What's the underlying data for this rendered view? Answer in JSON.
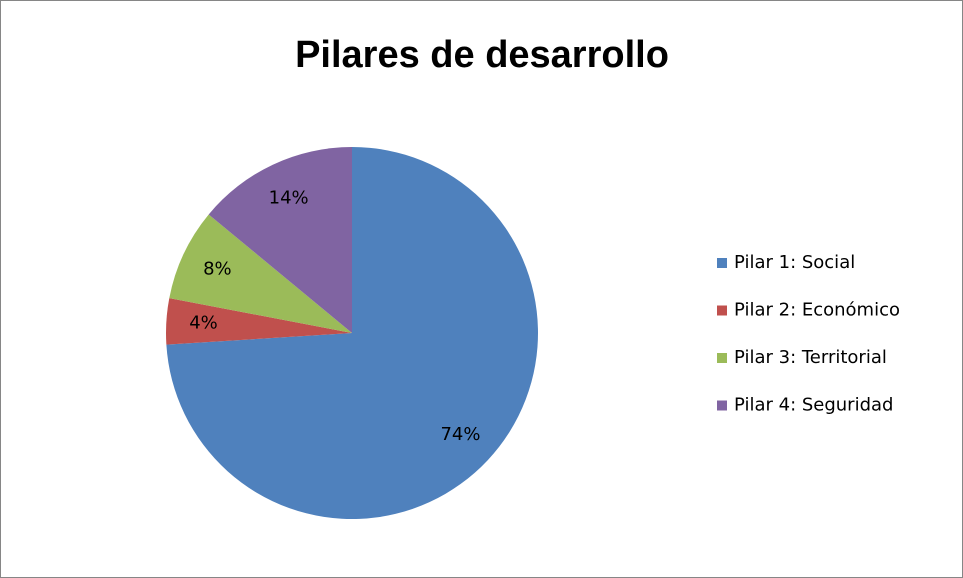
{
  "chart_data": {
    "type": "pie",
    "title": "Pilares de desarrollo",
    "categories": [
      "Pilar 1: Social",
      "Pilar 2: Económico",
      "Pilar 3: Territorial",
      "Pilar 4: Seguridad"
    ],
    "values": [
      74,
      4,
      8,
      14
    ],
    "value_labels": [
      "74%",
      "4%",
      "8%",
      "14%"
    ],
    "colors": [
      "#4f81bd",
      "#c0504d",
      "#9bbb59",
      "#8064a2"
    ],
    "legend": "right"
  }
}
